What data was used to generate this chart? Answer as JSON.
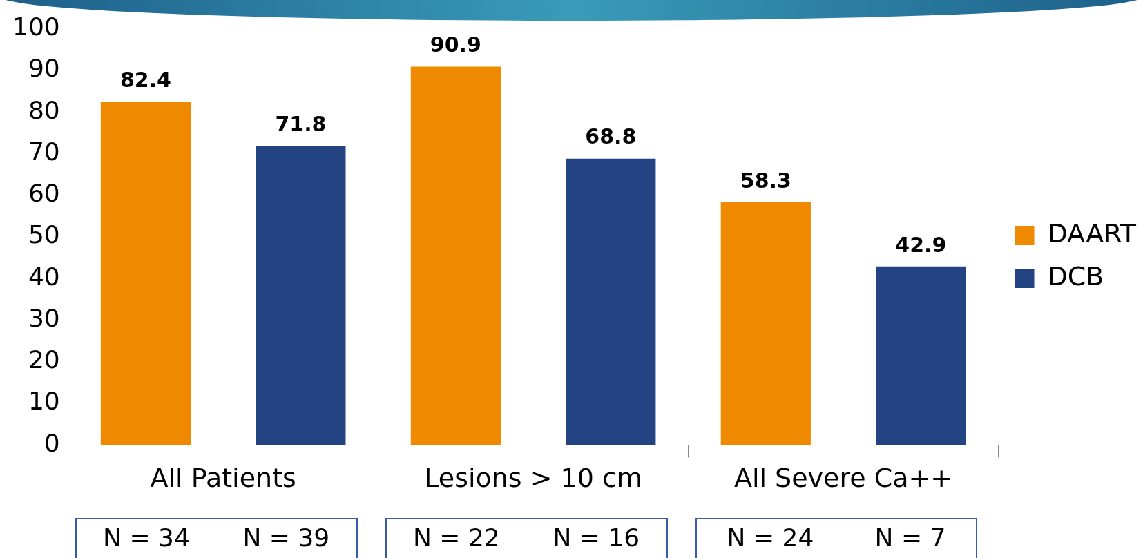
{
  "chart_data": {
    "type": "bar",
    "categories": [
      "All Patients",
      "Lesions > 10 cm",
      "All Severe Ca++"
    ],
    "series": [
      {
        "name": "DAART",
        "color": "#ef8a00",
        "values": [
          82.4,
          90.9,
          58.3
        ]
      },
      {
        "name": "DCB",
        "color": "#234383",
        "values": [
          71.8,
          68.8,
          42.9
        ]
      }
    ],
    "ylim": [
      0,
      100
    ],
    "yticks": [
      0,
      10,
      20,
      30,
      40,
      50,
      60,
      70,
      80,
      90,
      100
    ],
    "grid": false,
    "legend": "right",
    "data_labels": true,
    "annotations": [
      "N = 34",
      "N = 39",
      "N = 22",
      "N = 16",
      "N = 24",
      "N = 7"
    ]
  }
}
